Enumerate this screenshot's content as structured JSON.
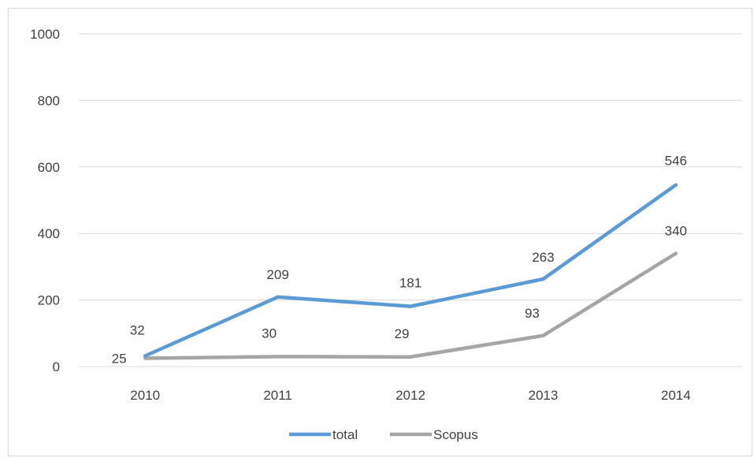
{
  "chart_data": {
    "type": "line",
    "categories": [
      "2010",
      "2011",
      "2012",
      "2013",
      "2014"
    ],
    "series": [
      {
        "name": "total",
        "values": [
          32,
          209,
          181,
          263,
          546
        ],
        "color": "#5b9bd5"
      },
      {
        "name": "Scopus",
        "values": [
          25,
          30,
          29,
          93,
          340
        ],
        "color": "#a5a5a5"
      }
    ],
    "ylim": [
      0,
      1000
    ],
    "yticks": [
      "0",
      "200",
      "400",
      "600",
      "800",
      "1000"
    ],
    "grid": true,
    "legend_position": "bottom"
  }
}
